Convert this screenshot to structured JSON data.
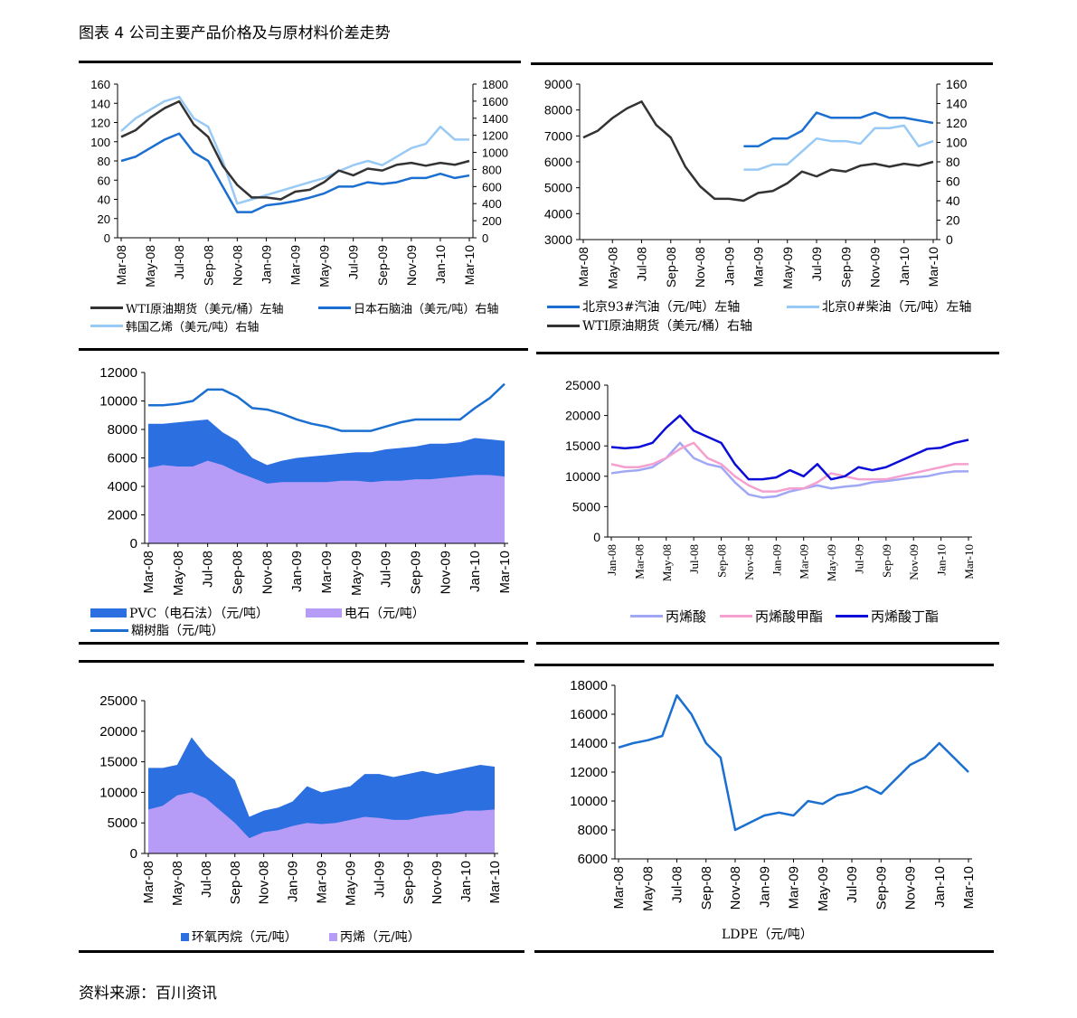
{
  "title": "图表 4 公司主要产品价格及与原材料价差走势",
  "source": "资料来源：百川资讯",
  "colors": {
    "black": "#333333",
    "blue": "#1a6fd1",
    "lightblue": "#99c9f5",
    "area_blue": "#2c6fe0",
    "area_purple": "#b79cf7",
    "acid": "#a0a8f5",
    "methyl": "#f5a0cf",
    "butyl": "#0c0cd8"
  },
  "chart_data": [
    {
      "id": "c1",
      "type": "line",
      "x": [
        "Mar-08",
        "Apr-08",
        "May-08",
        "Jun-08",
        "Jul-08",
        "Aug-08",
        "Sep-08",
        "Oct-08",
        "Nov-08",
        "Dec-08",
        "Jan-09",
        "Feb-09",
        "Mar-09",
        "Apr-09",
        "May-09",
        "Jun-09",
        "Jul-09",
        "Aug-09",
        "Sep-09",
        "Oct-09",
        "Nov-09",
        "Dec-09",
        "Jan-10",
        "Feb-10",
        "Mar-10"
      ],
      "xticks": [
        "Mar-08",
        "May-08",
        "Jul-08",
        "Sep-08",
        "Nov-08",
        "Jan-09",
        "Mar-09",
        "May-09",
        "Jul-09",
        "Sep-09",
        "Nov-09",
        "Jan-10",
        "Mar-10"
      ],
      "ylim_left": [
        0,
        160
      ],
      "ylim_right": [
        0,
        1800
      ],
      "yticks_left": [
        "0",
        "20",
        "40",
        "60",
        "80",
        "100",
        "120",
        "140",
        "160"
      ],
      "yticks_right": [
        "0",
        "200",
        "400",
        "600",
        "800",
        "1000",
        "1200",
        "1400",
        "1600",
        "1800"
      ],
      "series": [
        {
          "name": "韩国乙烯（美元/吨）右轴",
          "axis": "right",
          "color": "lightblue",
          "values": [
            1250,
            1400,
            1500,
            1600,
            1650,
            1400,
            1300,
            900,
            400,
            450,
            500,
            550,
            600,
            650,
            700,
            780,
            850,
            900,
            850,
            950,
            1050,
            1100,
            1300,
            1150,
            1150
          ]
        },
        {
          "name": "日本石脑油（美元/吨）右轴",
          "axis": "right",
          "color": "blue",
          "values": [
            900,
            950,
            1050,
            1150,
            1220,
            1000,
            900,
            600,
            300,
            300,
            380,
            400,
            430,
            470,
            520,
            600,
            600,
            650,
            630,
            650,
            700,
            700,
            750,
            700,
            730
          ]
        },
        {
          "name": "WTI原油期货（美元/桶）左轴",
          "axis": "left",
          "color": "black",
          "values": [
            105,
            112,
            125,
            135,
            142,
            118,
            105,
            75,
            55,
            42,
            42,
            40,
            48,
            50,
            58,
            70,
            65,
            72,
            70,
            76,
            78,
            75,
            78,
            76,
            80
          ]
        }
      ],
      "legend": [
        "WTI原油期货（美元/桶）左轴",
        "日本石脑油（美元/吨）右轴",
        "韩国乙烯（美元/吨）右轴"
      ]
    },
    {
      "id": "c2",
      "type": "line",
      "x": [
        "Mar-08",
        "Apr-08",
        "May-08",
        "Jun-08",
        "Jul-08",
        "Aug-08",
        "Sep-08",
        "Oct-08",
        "Nov-08",
        "Dec-08",
        "Jan-09",
        "Feb-09",
        "Mar-09",
        "Apr-09",
        "May-09",
        "Jun-09",
        "Jul-09",
        "Aug-09",
        "Sep-09",
        "Oct-09",
        "Nov-09",
        "Dec-09",
        "Jan-10",
        "Feb-10",
        "Mar-10"
      ],
      "xticks": [
        "Mar-08",
        "May-08",
        "Jul-08",
        "Sep-08",
        "Nov-08",
        "Jan-09",
        "Mar-09",
        "May-09",
        "Jul-09",
        "Sep-09",
        "Nov-09",
        "Jan-10",
        "Mar-10"
      ],
      "ylim_left": [
        3000,
        9000
      ],
      "ylim_right": [
        0,
        160
      ],
      "yticks_left": [
        "3000",
        "4000",
        "5000",
        "6000",
        "7000",
        "8000",
        "9000"
      ],
      "yticks_right": [
        "0",
        "20",
        "40",
        "60",
        "80",
        "100",
        "120",
        "140",
        "160"
      ],
      "series": [
        {
          "name": "北京0#柴油（元/吨）左轴",
          "axis": "left",
          "color": "lightblue",
          "values": [
            null,
            null,
            null,
            null,
            null,
            null,
            null,
            null,
            null,
            null,
            null,
            5700,
            5700,
            5900,
            5900,
            6400,
            6900,
            6800,
            6800,
            6700,
            7300,
            7300,
            7400,
            6600,
            6800
          ]
        },
        {
          "name": "北京93#汽油（元/吨）左轴",
          "axis": "left",
          "color": "blue",
          "values": [
            null,
            null,
            null,
            null,
            null,
            null,
            null,
            null,
            null,
            null,
            null,
            6600,
            6600,
            6900,
            6900,
            7200,
            7900,
            7700,
            7700,
            7700,
            7900,
            7700,
            7700,
            7600,
            7500
          ]
        },
        {
          "name": "WTI原油期货（美元/桶）右轴",
          "axis": "right",
          "color": "black",
          "values": [
            105,
            112,
            125,
            135,
            142,
            118,
            105,
            75,
            55,
            42,
            42,
            40,
            48,
            50,
            58,
            70,
            65,
            72,
            70,
            76,
            78,
            75,
            78,
            76,
            80
          ]
        }
      ],
      "legend": [
        "北京93#汽油（元/吨）左轴",
        "北京0#柴油（元/吨）左轴",
        "WTI原油期货（美元/桶）右轴"
      ]
    },
    {
      "id": "c3",
      "type": "area",
      "x": [
        "Mar-08",
        "Apr-08",
        "May-08",
        "Jun-08",
        "Jul-08",
        "Aug-08",
        "Sep-08",
        "Oct-08",
        "Nov-08",
        "Dec-08",
        "Jan-09",
        "Feb-09",
        "Mar-09",
        "Apr-09",
        "May-09",
        "Jun-09",
        "Jul-09",
        "Aug-09",
        "Sep-09",
        "Oct-09",
        "Nov-09",
        "Dec-09",
        "Jan-10",
        "Feb-10",
        "Mar-10"
      ],
      "xticks": [
        "Mar-08",
        "May-08",
        "Jul-08",
        "Sep-08",
        "Nov-08",
        "Jan-09",
        "Mar-09",
        "May-09",
        "Jul-09",
        "Sep-09",
        "Nov-09",
        "Jan-10",
        "Mar-10"
      ],
      "ylim_left": [
        0,
        12000
      ],
      "yticks_left": [
        "0",
        "2000",
        "4000",
        "6000",
        "8000",
        "10000",
        "12000"
      ],
      "series": [
        {
          "name": "PVC（电石法）（元/吨）",
          "kind": "area",
          "color": "area_blue",
          "values": [
            8400,
            8400,
            8500,
            8600,
            8700,
            7800,
            7200,
            6000,
            5500,
            5800,
            6000,
            6100,
            6200,
            6300,
            6400,
            6400,
            6600,
            6700,
            6800,
            7000,
            7000,
            7100,
            7400,
            7300,
            7200
          ]
        },
        {
          "name": "电石（元/吨）",
          "kind": "area",
          "color": "area_purple",
          "values": [
            5300,
            5500,
            5400,
            5400,
            5800,
            5500,
            5000,
            4600,
            4200,
            4300,
            4300,
            4300,
            4300,
            4400,
            4400,
            4300,
            4400,
            4400,
            4500,
            4500,
            4600,
            4700,
            4800,
            4800,
            4700
          ]
        },
        {
          "name": "糊树脂（元/吨）",
          "kind": "line",
          "color": "blue",
          "values": [
            9700,
            9700,
            9800,
            10000,
            10800,
            10800,
            10300,
            9500,
            9400,
            9100,
            8700,
            8400,
            8200,
            7900,
            7900,
            7900,
            8200,
            8500,
            8700,
            8700,
            8700,
            8700,
            9500,
            10200,
            11200
          ]
        }
      ],
      "legend": [
        "PVC（电石法）（元/吨）",
        "电石（元/吨）",
        "糊树脂（元/吨）"
      ]
    },
    {
      "id": "c4",
      "type": "line",
      "x": [
        "Jan-08",
        "Feb-08",
        "Mar-08",
        "Apr-08",
        "May-08",
        "Jun-08",
        "Jul-08",
        "Aug-08",
        "Sep-08",
        "Oct-08",
        "Nov-08",
        "Dec-08",
        "Jan-09",
        "Feb-09",
        "Mar-09",
        "Apr-09",
        "May-09",
        "Jun-09",
        "Jul-09",
        "Aug-09",
        "Sep-09",
        "Oct-09",
        "Nov-09",
        "Dec-09",
        "Jan-10",
        "Feb-10",
        "Mar-10"
      ],
      "xticks": [
        "Jan-08",
        "Mar-08",
        "May-08",
        "Jul-08",
        "Sep-08",
        "Nov-08",
        "Jan-09",
        "Mar-09",
        "May-09",
        "Jul-09",
        "Sep-09",
        "Nov-09",
        "Jan-10",
        "Mar-10"
      ],
      "ylim_left": [
        0,
        25000
      ],
      "yticks_left": [
        "0",
        "5000",
        "10000",
        "15000",
        "20000",
        "25000"
      ],
      "series": [
        {
          "name": "丙烯酸",
          "color": "acid",
          "values": [
            10500,
            10800,
            11000,
            11500,
            13000,
            15500,
            13000,
            12000,
            11500,
            9000,
            7000,
            6500,
            6700,
            7500,
            8000,
            8500,
            8000,
            8300,
            8500,
            9000,
            9200,
            9500,
            9800,
            10000,
            10500,
            10800,
            10800
          ]
        },
        {
          "name": "丙烯酸甲酯",
          "color": "methyl",
          "values": [
            12000,
            11500,
            11500,
            12000,
            13000,
            14500,
            15500,
            13000,
            12000,
            10000,
            8500,
            7500,
            7500,
            8000,
            8000,
            9000,
            10500,
            10000,
            9500,
            9500,
            9500,
            10000,
            10500,
            11000,
            11500,
            12000,
            12000
          ]
        },
        {
          "name": "丙烯酸丁酯",
          "color": "butyl",
          "values": [
            14800,
            14600,
            14800,
            15500,
            18000,
            20000,
            17500,
            16500,
            15500,
            12000,
            9500,
            9500,
            9800,
            11000,
            10000,
            12000,
            9500,
            10000,
            11500,
            11000,
            11500,
            12500,
            13500,
            14500,
            14700,
            15500,
            16000
          ]
        }
      ],
      "legend": [
        "丙烯酸",
        "丙烯酸甲酯",
        "丙烯酸丁酯"
      ]
    },
    {
      "id": "c5",
      "type": "area",
      "x": [
        "Mar-08",
        "Apr-08",
        "May-08",
        "Jun-08",
        "Jul-08",
        "Aug-08",
        "Sep-08",
        "Oct-08",
        "Nov-08",
        "Dec-08",
        "Jan-09",
        "Feb-09",
        "Mar-09",
        "Apr-09",
        "May-09",
        "Jun-09",
        "Jul-09",
        "Aug-09",
        "Sep-09",
        "Oct-09",
        "Nov-09",
        "Dec-09",
        "Jan-10",
        "Feb-10",
        "Mar-10"
      ],
      "xticks": [
        "Mar-08",
        "May-08",
        "Jul-08",
        "Sep-08",
        "Nov-08",
        "Jan-09",
        "Mar-09",
        "May-09",
        "Jul-09",
        "Sep-09",
        "Nov-09",
        "Jan-10",
        "Mar-10"
      ],
      "ylim_left": [
        0,
        25000
      ],
      "yticks_left": [
        "0",
        "5000",
        "10000",
        "15000",
        "20000",
        "25000"
      ],
      "series": [
        {
          "name": "环氧丙烷（元/吨）",
          "kind": "area",
          "color": "area_blue",
          "values": [
            14000,
            14000,
            14500,
            19000,
            16000,
            14000,
            12000,
            6000,
            7000,
            7500,
            8500,
            11000,
            10000,
            10500,
            11000,
            13000,
            13000,
            12500,
            13000,
            13500,
            13000,
            13500,
            14000,
            14500,
            14200
          ]
        },
        {
          "name": "丙烯（元/吨）",
          "kind": "area",
          "color": "area_purple",
          "values": [
            7200,
            7800,
            9500,
            10000,
            9000,
            7000,
            5000,
            2500,
            3500,
            3800,
            4500,
            5000,
            4800,
            5000,
            5500,
            6000,
            5800,
            5500,
            5500,
            6000,
            6300,
            6500,
            7000,
            7000,
            7200
          ]
        }
      ],
      "legend": [
        "环氧丙烷（元/吨）",
        "丙烯（元/吨）"
      ]
    },
    {
      "id": "c6",
      "type": "line",
      "x": [
        "Mar-08",
        "Apr-08",
        "May-08",
        "Jun-08",
        "Jul-08",
        "Aug-08",
        "Sep-08",
        "Oct-08",
        "Nov-08",
        "Dec-08",
        "Jan-09",
        "Feb-09",
        "Mar-09",
        "Apr-09",
        "May-09",
        "Jun-09",
        "Jul-09",
        "Aug-09",
        "Sep-09",
        "Oct-09",
        "Nov-09",
        "Dec-09",
        "Jan-10",
        "Feb-10",
        "Mar-10"
      ],
      "xticks": [
        "Mar-08",
        "May-08",
        "Jul-08",
        "Sep-08",
        "Nov-08",
        "Jan-09",
        "Mar-09",
        "May-09",
        "Jul-09",
        "Sep-09",
        "Nov-09",
        "Jan-10",
        "Mar-10"
      ],
      "ylim_left": [
        6000,
        18000
      ],
      "yticks_left": [
        "6000",
        "8000",
        "10000",
        "12000",
        "14000",
        "16000",
        "18000"
      ],
      "series": [
        {
          "name": "LDPE（元/吨）",
          "color": "blue",
          "values": [
            13700,
            14000,
            14200,
            14500,
            17300,
            16000,
            14000,
            13000,
            8000,
            8500,
            9000,
            9200,
            9000,
            10000,
            9800,
            10400,
            10600,
            11000,
            10500,
            11500,
            12500,
            13000,
            14000,
            13000,
            12000
          ]
        }
      ],
      "legend": [
        "LDPE（元/吨）"
      ]
    }
  ]
}
